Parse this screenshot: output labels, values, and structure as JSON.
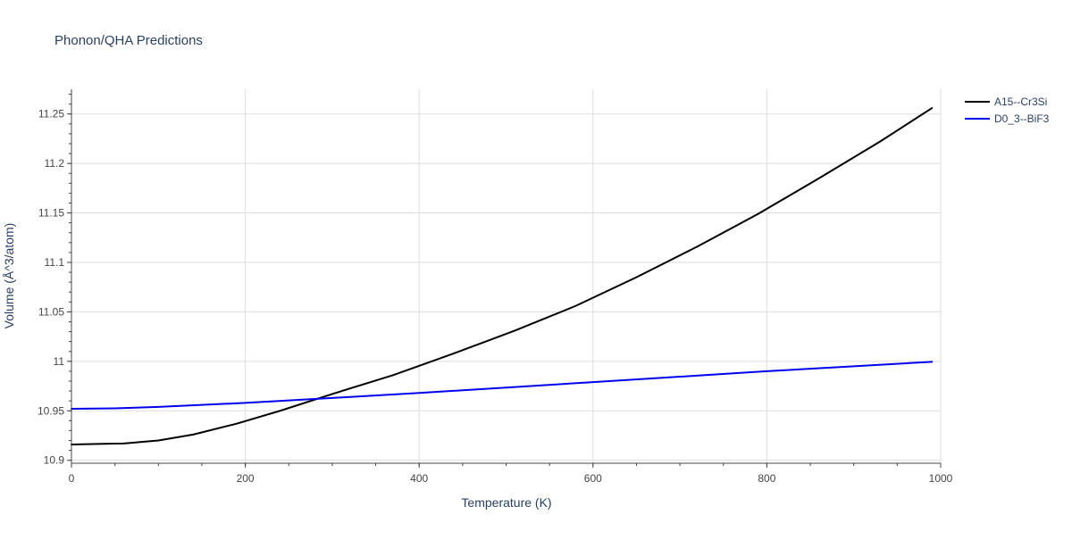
{
  "chart_data": {
    "type": "line",
    "title": "Phonon/QHA Predictions",
    "xlabel": "Temperature (K)",
    "ylabel": "Volume (Å^3/atom)",
    "xlim": [
      0,
      1000
    ],
    "ylim": [
      10.897,
      11.275
    ],
    "x_ticks": [
      0,
      200,
      400,
      600,
      800,
      1000
    ],
    "x_tick_labels": [
      "0",
      "200",
      "400",
      "600",
      "800",
      "1000"
    ],
    "y_ticks": [
      10.9,
      10.95,
      11,
      11.05,
      11.1,
      11.15,
      11.2,
      11.25
    ],
    "y_tick_labels": [
      "10.9",
      "10.95",
      "11",
      "11.05",
      "11.1",
      "11.15",
      "11.2",
      "11.25"
    ],
    "grid": true,
    "legend_position": "top-right outside",
    "series": [
      {
        "name": "A15--Cr3Si",
        "color": "#000000",
        "x": [
          0,
          30,
          60,
          100,
          140,
          190,
          240,
          300,
          370,
          440,
          510,
          580,
          650,
          720,
          790,
          860,
          930,
          990
        ],
        "y": [
          10.916,
          10.9165,
          10.917,
          10.92,
          10.926,
          10.937,
          10.95,
          10.967,
          10.986,
          11.008,
          11.031,
          11.056,
          11.085,
          11.116,
          11.149,
          11.185,
          11.222,
          11.256
        ]
      },
      {
        "name": "D0_3--BiF3",
        "color": "#0000ee",
        "x": [
          0,
          50,
          100,
          200,
          300,
          400,
          500,
          600,
          700,
          800,
          900,
          990
        ],
        "y": [
          10.952,
          10.9525,
          10.954,
          10.958,
          10.963,
          10.968,
          10.9735,
          10.979,
          10.9845,
          10.99,
          10.995,
          10.9995
        ]
      }
    ]
  }
}
